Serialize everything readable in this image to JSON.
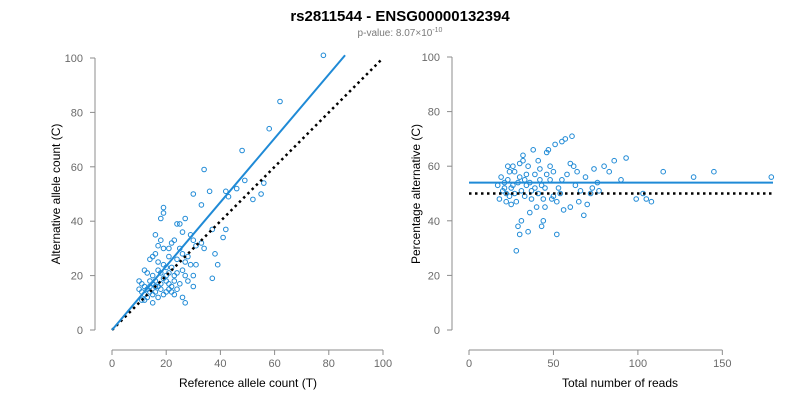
{
  "title": "rs2811544 - ENSG00000132394",
  "subtitle": {
    "prefix": "p-value: 8.07×10",
    "exponent": "-10"
  },
  "colors": {
    "points": "#1f8ad6",
    "fit_line": "#1f8ad6",
    "reference_line": "#000000",
    "axis": "#8c8c8c"
  },
  "chart_data": [
    {
      "type": "scatter",
      "title": "",
      "xlabel": "Reference allele count (T)",
      "ylabel": "Alternative allele count (C)",
      "xlim": [
        0,
        100
      ],
      "ylim": [
        0,
        100
      ],
      "xticks": [
        0,
        20,
        40,
        60,
        80,
        100
      ],
      "yticks": [
        0,
        20,
        40,
        60,
        80,
        100
      ],
      "grid": false,
      "fit_line": {
        "from": [
          0,
          0
        ],
        "to": [
          86,
          101
        ],
        "style": "solid"
      },
      "reference_line": {
        "from": [
          0,
          0
        ],
        "to": [
          100,
          100
        ],
        "style": "dotted"
      },
      "points": [
        [
          78,
          101
        ],
        [
          62,
          84
        ],
        [
          58,
          74
        ],
        [
          48,
          66
        ],
        [
          34,
          59
        ],
        [
          36,
          51
        ],
        [
          42,
          51
        ],
        [
          49,
          55
        ],
        [
          43,
          49
        ],
        [
          46,
          52
        ],
        [
          52,
          48
        ],
        [
          55,
          50
        ],
        [
          56,
          54
        ],
        [
          30,
          50
        ],
        [
          33,
          46
        ],
        [
          19,
          45
        ],
        [
          18,
          41
        ],
        [
          19,
          43
        ],
        [
          27,
          41
        ],
        [
          24,
          39
        ],
        [
          25,
          39
        ],
        [
          37,
          37
        ],
        [
          42,
          37
        ],
        [
          41,
          34
        ],
        [
          29,
          35
        ],
        [
          30,
          33
        ],
        [
          26,
          36
        ],
        [
          23,
          33
        ],
        [
          18,
          33
        ],
        [
          16,
          35
        ],
        [
          17,
          31
        ],
        [
          19,
          30
        ],
        [
          21,
          30
        ],
        [
          22,
          32
        ],
        [
          25,
          30
        ],
        [
          31,
          31
        ],
        [
          33,
          32
        ],
        [
          34,
          30
        ],
        [
          26,
          28
        ],
        [
          28,
          27
        ],
        [
          21,
          27
        ],
        [
          16,
          28
        ],
        [
          15,
          27
        ],
        [
          14,
          26
        ],
        [
          17,
          25
        ],
        [
          19,
          24
        ],
        [
          20,
          23
        ],
        [
          22,
          23
        ],
        [
          24,
          26
        ],
        [
          27,
          25
        ],
        [
          29,
          24
        ],
        [
          12,
          22
        ],
        [
          13,
          21
        ],
        [
          15,
          20
        ],
        [
          17,
          22
        ],
        [
          18,
          21
        ],
        [
          20,
          20
        ],
        [
          21,
          21
        ],
        [
          23,
          20
        ],
        [
          24,
          21
        ],
        [
          26,
          22
        ],
        [
          27,
          20
        ],
        [
          30,
          20
        ],
        [
          31,
          24
        ],
        [
          38,
          28
        ],
        [
          39,
          24
        ],
        [
          37,
          19
        ],
        [
          10,
          18
        ],
        [
          11,
          17
        ],
        [
          12,
          16
        ],
        [
          14,
          18
        ],
        [
          15,
          17
        ],
        [
          16,
          18
        ],
        [
          17,
          16
        ],
        [
          18,
          17
        ],
        [
          19,
          19
        ],
        [
          20,
          18
        ],
        [
          21,
          17
        ],
        [
          22,
          16
        ],
        [
          23,
          18
        ],
        [
          25,
          17
        ],
        [
          28,
          18
        ],
        [
          10,
          15
        ],
        [
          11,
          14
        ],
        [
          12,
          13
        ],
        [
          13,
          15
        ],
        [
          14,
          14
        ],
        [
          15,
          13
        ],
        [
          16,
          14
        ],
        [
          18,
          15
        ],
        [
          20,
          14
        ],
        [
          22,
          14
        ],
        [
          24,
          15
        ],
        [
          26,
          12
        ],
        [
          27,
          10
        ],
        [
          30,
          16
        ],
        [
          11,
          11
        ],
        [
          13,
          12
        ],
        [
          12,
          11
        ],
        [
          15,
          10
        ],
        [
          17,
          12
        ],
        [
          14,
          16
        ],
        [
          16,
          16
        ],
        [
          19,
          13
        ],
        [
          21,
          15
        ],
        [
          23,
          13
        ]
      ]
    },
    {
      "type": "scatter",
      "title": "",
      "xlabel": "Total number of reads",
      "ylabel": "Percentage alternative (C)",
      "xlim": [
        0,
        180
      ],
      "ylim": [
        0,
        100
      ],
      "xticks": [
        0,
        50,
        100,
        150
      ],
      "yticks": [
        0,
        20,
        40,
        60,
        80,
        100
      ],
      "grid": false,
      "fit_line": {
        "y": 54,
        "from_x": 0,
        "to_x": 180,
        "style": "solid"
      },
      "reference_line": {
        "y": 50,
        "from_x": 0,
        "to_x": 180,
        "style": "dotted"
      },
      "points": [
        [
          179,
          56
        ],
        [
          145,
          58
        ],
        [
          133,
          56
        ],
        [
          115,
          58
        ],
        [
          108,
          47
        ],
        [
          105,
          48
        ],
        [
          103,
          50
        ],
        [
          99,
          48
        ],
        [
          93,
          63
        ],
        [
          90,
          55
        ],
        [
          86,
          62
        ],
        [
          83,
          58
        ],
        [
          80,
          60
        ],
        [
          76,
          54
        ],
        [
          74,
          59
        ],
        [
          72,
          50
        ],
        [
          70,
          46
        ],
        [
          68,
          42
        ],
        [
          64,
          58
        ],
        [
          62,
          60
        ],
        [
          60,
          61
        ],
        [
          57,
          70
        ],
        [
          55,
          55
        ],
        [
          54,
          50
        ],
        [
          52,
          47
        ],
        [
          50,
          58
        ],
        [
          48,
          60
        ],
        [
          46,
          65
        ],
        [
          45,
          52
        ],
        [
          44,
          48
        ],
        [
          42,
          55
        ],
        [
          41,
          62
        ],
        [
          40,
          45
        ],
        [
          39,
          57
        ],
        [
          38,
          66
        ],
        [
          37,
          51
        ],
        [
          36,
          43
        ],
        [
          35,
          60
        ],
        [
          34,
          53
        ],
        [
          33,
          49
        ],
        [
          32,
          64
        ],
        [
          31,
          40
        ],
        [
          30,
          56
        ],
        [
          29,
          54
        ],
        [
          28,
          47
        ],
        [
          27,
          58
        ],
        [
          26,
          60
        ],
        [
          25,
          52
        ],
        [
          24,
          49
        ],
        [
          23,
          55
        ],
        [
          22,
          50
        ],
        [
          21,
          54
        ],
        [
          20,
          51
        ],
        [
          19,
          56
        ],
        [
          18,
          48
        ],
        [
          17,
          53
        ],
        [
          28,
          29
        ],
        [
          29,
          38
        ],
        [
          30,
          35
        ],
        [
          35,
          36
        ],
        [
          43,
          38
        ],
        [
          44,
          40
        ],
        [
          52,
          35
        ],
        [
          56,
          44
        ],
        [
          60,
          45
        ],
        [
          65,
          47
        ],
        [
          55,
          69
        ],
        [
          61,
          71
        ],
        [
          51,
          68
        ],
        [
          47,
          66
        ],
        [
          42,
          59
        ],
        [
          39,
          52
        ],
        [
          36,
          54
        ],
        [
          34,
          57
        ],
        [
          32,
          62
        ],
        [
          30,
          61
        ],
        [
          27,
          50
        ],
        [
          25,
          46
        ],
        [
          24,
          58
        ],
        [
          23,
          60
        ],
        [
          22,
          47
        ],
        [
          21,
          52
        ],
        [
          33,
          55
        ],
        [
          37,
          48
        ],
        [
          41,
          50
        ],
        [
          43,
          53
        ],
        [
          45,
          45
        ],
        [
          48,
          55
        ],
        [
          50,
          49
        ],
        [
          53,
          52
        ],
        [
          58,
          57
        ],
        [
          63,
          53
        ],
        [
          66,
          51
        ],
        [
          69,
          56
        ],
        [
          73,
          52
        ],
        [
          77,
          51
        ],
        [
          46,
          57
        ],
        [
          49,
          48
        ],
        [
          31,
          51
        ],
        [
          26,
          53
        ]
      ]
    }
  ]
}
